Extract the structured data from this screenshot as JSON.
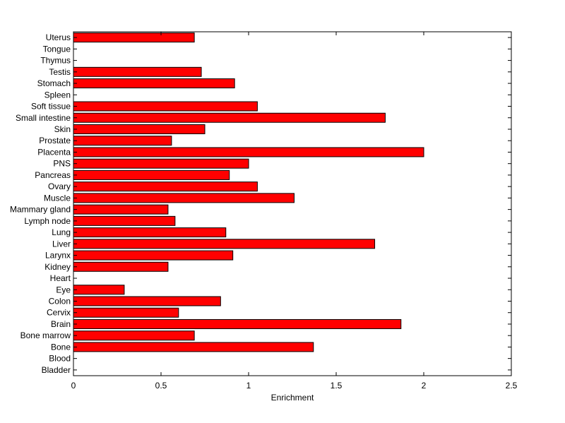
{
  "chart_data": {
    "type": "bar",
    "orientation": "horizontal",
    "title": "",
    "xlabel": "Enrichment",
    "ylabel": "",
    "xlim": [
      0,
      2.5
    ],
    "xticks": [
      "0",
      "0.5",
      "1",
      "1.5",
      "2",
      "2.5"
    ],
    "grid": false,
    "bar_color": "#ff0000",
    "edge_color": "#000000",
    "categories": [
      "Uterus",
      "Tongue",
      "Thymus",
      "Testis",
      "Stomach",
      "Spleen",
      "Soft tissue",
      "Small intestine",
      "Skin",
      "Prostate",
      "Placenta",
      "PNS",
      "Pancreas",
      "Ovary",
      "Muscle",
      "Mammary gland",
      "Lymph node",
      "Lung",
      "Liver",
      "Larynx",
      "Kidney",
      "Heart",
      "Eye",
      "Colon",
      "Cervix",
      "Brain",
      "Bone marrow",
      "Bone",
      "Blood",
      "Bladder"
    ],
    "values": [
      0.69,
      0,
      0,
      0.73,
      0.92,
      0,
      1.05,
      1.78,
      0.75,
      0.56,
      2.0,
      1.0,
      0.89,
      1.05,
      1.26,
      0.54,
      0.58,
      0.87,
      1.72,
      0.91,
      0.54,
      0,
      0.29,
      0.84,
      0.6,
      1.87,
      0.69,
      1.37,
      0,
      0
    ]
  }
}
